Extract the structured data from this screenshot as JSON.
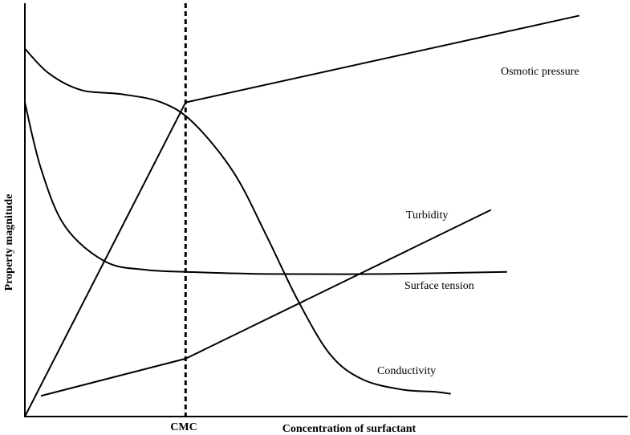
{
  "chart_data": {
    "type": "line",
    "xlabel": "Concentration of surfactant",
    "ylabel": "Property magnitude",
    "x_ticks": [
      "CMC"
    ],
    "cmc_marker": {
      "label": "CMC",
      "x": 2.0,
      "style": "dashed"
    },
    "xlim": [
      0,
      7.5
    ],
    "ylim": [
      0,
      10
    ],
    "grid": false,
    "series": [
      {
        "name": "Osmotic pressure",
        "points": [
          [
            0.0,
            0.0
          ],
          [
            2.0,
            7.6
          ],
          [
            6.9,
            9.7
          ]
        ]
      },
      {
        "name": "Turbidity",
        "points": [
          [
            0.2,
            0.5
          ],
          [
            2.0,
            1.4
          ],
          [
            5.8,
            5.0
          ]
        ]
      },
      {
        "name": "Surface tension",
        "points": [
          [
            0.0,
            7.6
          ],
          [
            0.2,
            6.0
          ],
          [
            0.5,
            4.6
          ],
          [
            1.0,
            3.75
          ],
          [
            1.5,
            3.55
          ],
          [
            2.0,
            3.5
          ],
          [
            3.0,
            3.45
          ],
          [
            4.5,
            3.45
          ],
          [
            6.0,
            3.5
          ]
        ]
      },
      {
        "name": "Conductivity",
        "points": [
          [
            0.0,
            8.9
          ],
          [
            0.3,
            8.3
          ],
          [
            0.7,
            7.9
          ],
          [
            1.2,
            7.8
          ],
          [
            1.7,
            7.6
          ],
          [
            2.1,
            7.1
          ],
          [
            2.6,
            5.9
          ],
          [
            3.0,
            4.4
          ],
          [
            3.4,
            2.8
          ],
          [
            3.8,
            1.5
          ],
          [
            4.2,
            0.9
          ],
          [
            4.7,
            0.65
          ],
          [
            5.1,
            0.6
          ],
          [
            5.3,
            0.55
          ]
        ]
      }
    ],
    "annotations": [
      {
        "text": "Osmotic pressure",
        "series": "Osmotic pressure"
      },
      {
        "text": "Turbidity",
        "series": "Turbidity"
      },
      {
        "text": "Surface tension",
        "series": "Surface tension"
      },
      {
        "text": "Conductivity",
        "series": "Conductivity"
      }
    ]
  }
}
